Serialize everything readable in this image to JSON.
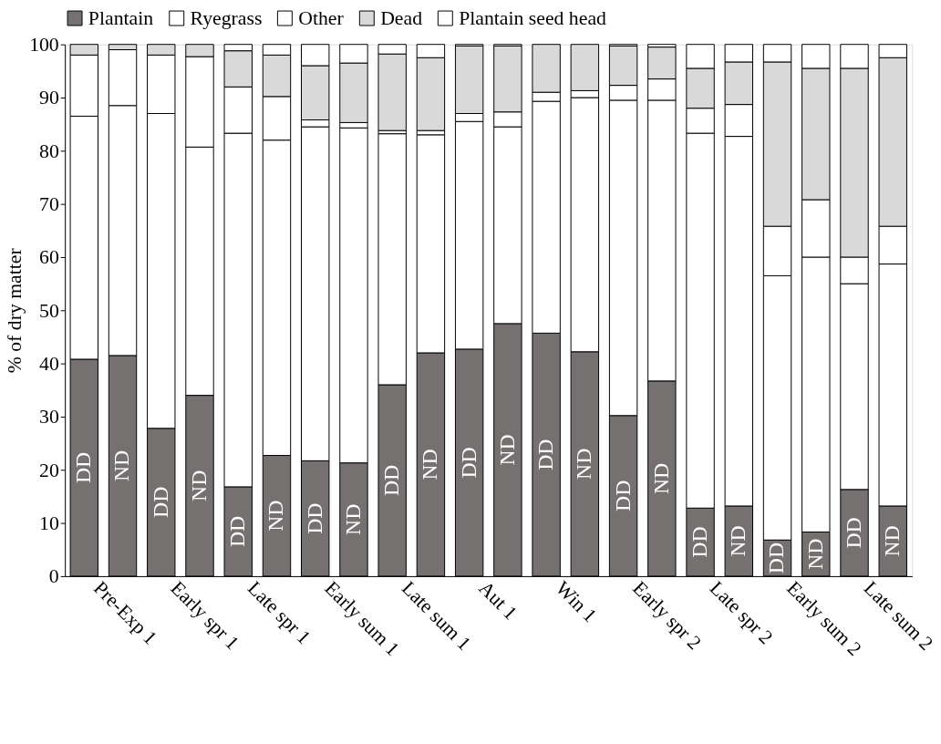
{
  "chart_data": {
    "type": "bar",
    "stacked": true,
    "ylabel": "% of dry matter",
    "categories": [
      "Pre-Exp 1",
      null,
      "Early spr 1",
      null,
      "Late spr 1",
      null,
      "Early sum 1",
      null,
      "Late sum 1",
      null,
      "Aut 1",
      null,
      "Win 1",
      null,
      "Early spr 2",
      null,
      "Late spr 2",
      null,
      "Early sum 2",
      null,
      "Late sum 2",
      null
    ],
    "series": [
      {
        "name": "Plantain",
        "color": "#767171",
        "values": [
          40.8,
          41.5,
          27.8,
          34,
          16.8,
          22.7,
          21.7,
          21.3,
          36,
          42,
          42.7,
          47.5,
          45.7,
          42.2,
          30.2,
          36.7,
          12.8,
          13.2,
          6.8,
          8.3,
          16.3,
          13.2
        ]
      },
      {
        "name": "Ryegrass",
        "color": "#ffffff",
        "values": [
          45.7,
          47,
          59.2,
          46.7,
          66.5,
          59.3,
          62.8,
          63,
          47.2,
          41,
          42.8,
          37,
          43.6,
          47.8,
          59.3,
          52.8,
          70.5,
          69.5,
          49.7,
          51.7,
          38.7,
          45.5
        ]
      },
      {
        "name": "Other",
        "color": "#ffffff",
        "values": [
          11.5,
          10.5,
          11,
          17,
          8.7,
          8.2,
          1.3,
          1,
          0.6,
          0.8,
          1.5,
          2.8,
          1.7,
          1.3,
          2.8,
          4,
          4.7,
          6,
          9.3,
          10.8,
          5,
          7.1
        ]
      },
      {
        "name": "Dead",
        "color": "#d9d9d9",
        "values": [
          2,
          1,
          2,
          2.3,
          6.8,
          7.8,
          10.2,
          11.2,
          14.4,
          13.7,
          12.7,
          12.4,
          9,
          8.7,
          7.4,
          6,
          7.5,
          8,
          30.9,
          24.7,
          35.5,
          31.7
        ]
      },
      {
        "name": "Plantain seed head",
        "color": "#ffffff",
        "values": [
          0,
          0,
          0,
          0,
          1.2,
          2,
          4,
          3.5,
          1.8,
          2.5,
          0.3,
          0.3,
          0,
          0,
          0.3,
          0.5,
          4.5,
          3.3,
          3.3,
          4.5,
          4.5,
          2.5
        ]
      }
    ],
    "annotations": [
      "DD",
      "ND",
      "DD",
      "ND",
      "DD",
      "ND",
      "DD",
      "ND",
      "DD",
      "ND",
      "DD",
      "ND",
      "DD",
      "ND",
      "DD",
      "ND",
      "DD",
      "ND",
      "DD",
      "ND",
      "DD",
      "ND"
    ],
    "ylim": [
      0,
      100
    ],
    "yticks": [
      0,
      10,
      20,
      30,
      40,
      50,
      60,
      70,
      80,
      90,
      100
    ],
    "grid": false,
    "legend": "top"
  }
}
